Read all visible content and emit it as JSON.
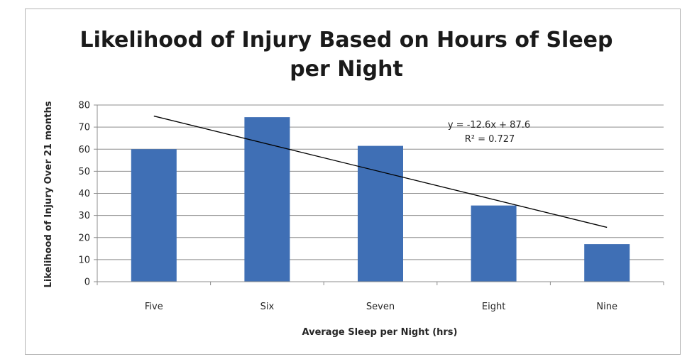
{
  "chart_data": {
    "type": "bar",
    "title": "Likelihood of Injury Based on Hours of Sleep per Night",
    "title_lines": [
      "Likelihood of Injury Based on Hours of Sleep",
      "per Night"
    ],
    "xlabel": "Average Sleep per Night (hrs)",
    "ylabel": "Likelihood of Injury Over 21 months",
    "categories": [
      "Five",
      "Six",
      "Seven",
      "Eight",
      "Nine"
    ],
    "values": [
      60,
      74.5,
      61.5,
      34.5,
      17
    ],
    "ylim": [
      0,
      80
    ],
    "yticks": [
      0,
      10,
      20,
      30,
      40,
      50,
      60,
      70,
      80
    ],
    "grid": true,
    "legend": "none",
    "bar_color": "#3f6fb5",
    "trendline": {
      "type": "linear",
      "slope": -12.6,
      "intercept": 87.6,
      "equation_label": "y = -12.6x + 87.6",
      "r2_label": "R² = 0.727",
      "color": "#000000"
    }
  }
}
